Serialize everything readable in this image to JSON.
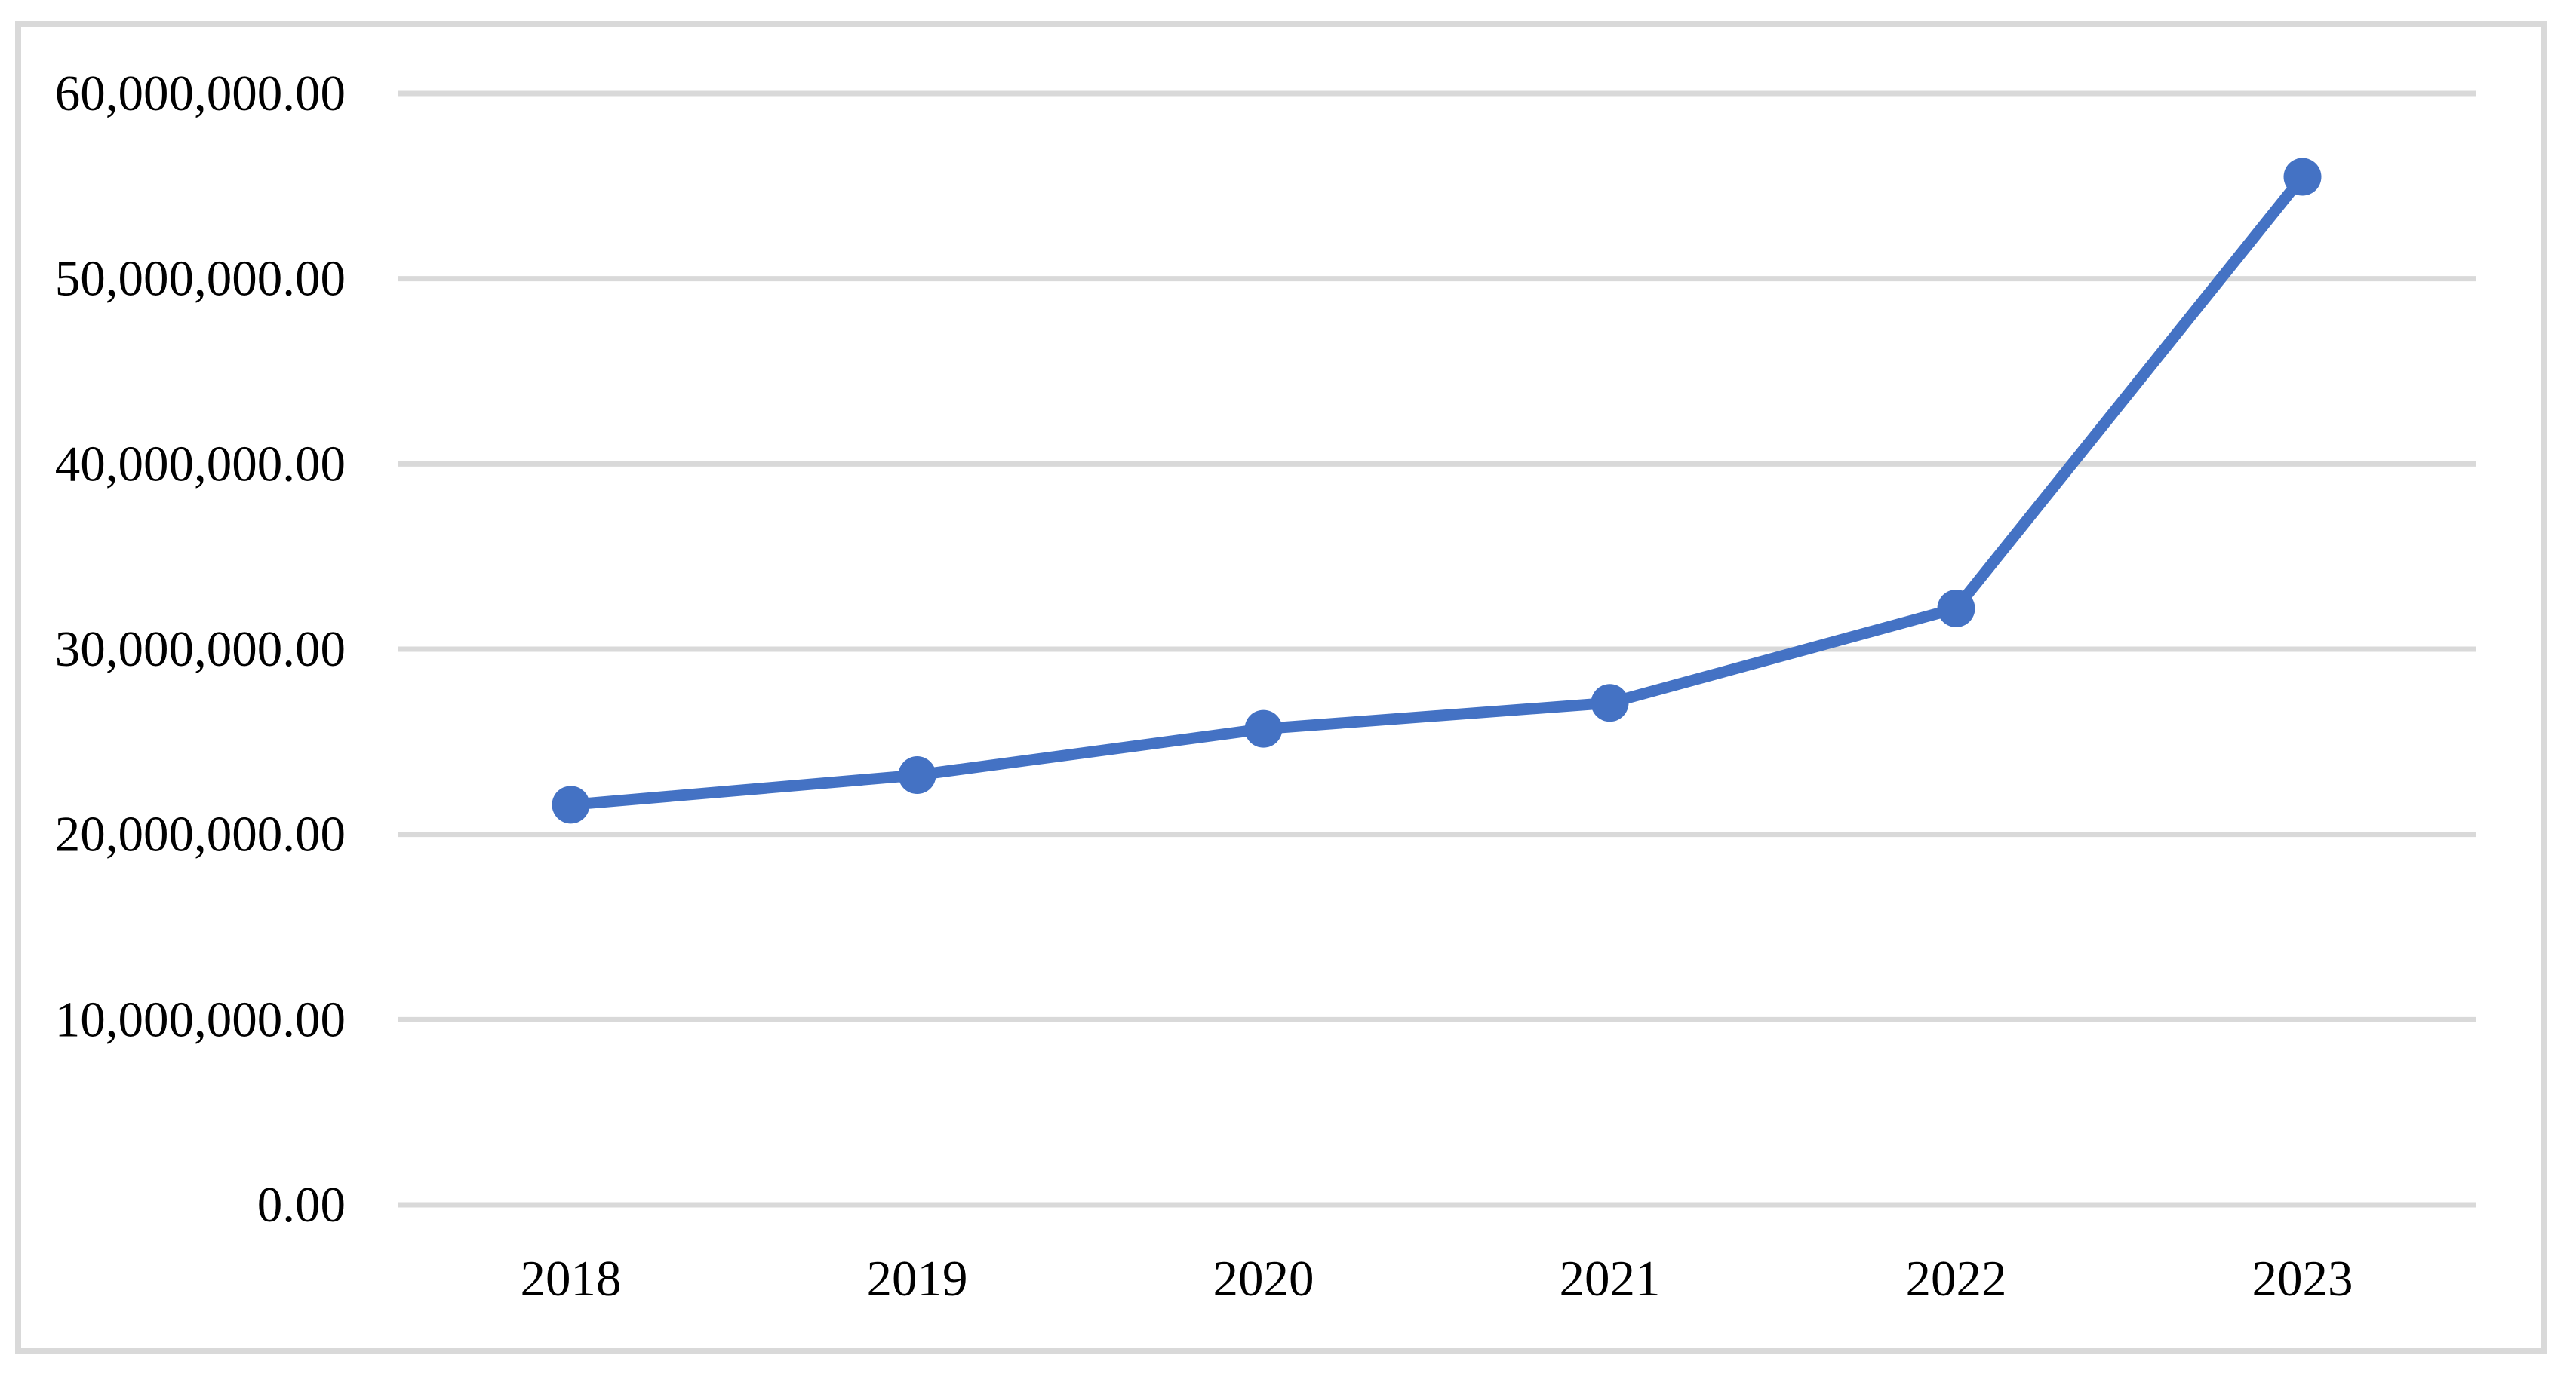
{
  "chart_data": {
    "type": "line",
    "title": "",
    "subtitle": "",
    "xlabel": "",
    "ylabel": "",
    "categories": [
      "2018",
      "2019",
      "2020",
      "2021",
      "2022",
      "2023"
    ],
    "values": [
      21600000,
      23200000,
      25700000,
      27100000,
      32200000,
      55500000
    ],
    "ylim": [
      0,
      60000000
    ],
    "ytick_values": [
      0,
      10000000,
      20000000,
      30000000,
      40000000,
      50000000,
      60000000
    ],
    "ytick_labels": [
      "0.00",
      "10,000,000.00",
      "20,000,000.00",
      "30,000,000.00",
      "40,000,000.00",
      "50,000,000.00",
      "60,000,000.00"
    ],
    "grid": true,
    "legend": false,
    "marker_style": "circle",
    "colors": {
      "line": "#4472C4",
      "marker": "#4472C4",
      "gridline": "#D9D9D9",
      "chart_border": "#D9D9D9",
      "axis_text": "#000000",
      "background": "#FFFFFF"
    }
  }
}
